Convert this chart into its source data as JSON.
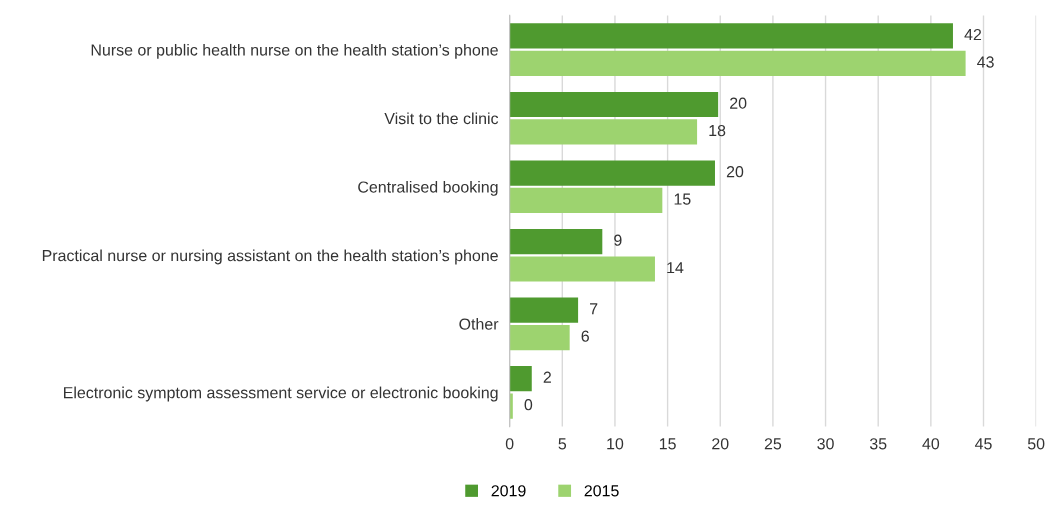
{
  "chart_data": {
    "type": "bar",
    "orientation": "horizontal",
    "categories": [
      "Nurse or public health nurse on the health station’s phone",
      "Visit to the clinic",
      "Centralised booking",
      "Practical nurse or nursing assistant on the health station’s phone",
      "Other",
      "Electronic symptom assessment service or electronic booking"
    ],
    "series": [
      {
        "name": "2019",
        "color": "#4f9a2f",
        "values": [
          42.1,
          19.8,
          19.5,
          8.8,
          6.5,
          2.1
        ],
        "value_labels": [
          "42",
          "20",
          "20",
          "9",
          "7",
          "2"
        ]
      },
      {
        "name": "2015",
        "color": "#9dd36f",
        "values": [
          43.3,
          17.8,
          14.5,
          13.8,
          5.7,
          0.3
        ],
        "value_labels": [
          "43",
          "18",
          "15",
          "14",
          "6",
          "0"
        ]
      }
    ],
    "xlim": [
      0,
      50
    ],
    "xticks": [
      0,
      5,
      10,
      15,
      20,
      25,
      30,
      35,
      40,
      45,
      50
    ],
    "grid": "x",
    "legend": "bottom"
  }
}
